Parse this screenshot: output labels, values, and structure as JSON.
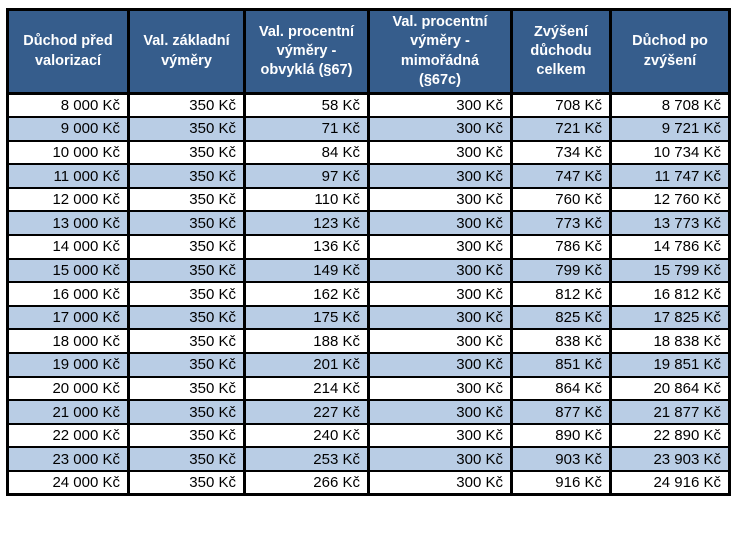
{
  "colors": {
    "header_bg": "#365D8C",
    "header_text": "#FFFFFF",
    "row_alt_bg": "#B9CDE5",
    "row_bg": "#FFFFFF",
    "border": "#000000",
    "data_text": "#000000"
  },
  "chart_data": {
    "type": "table",
    "currency_unit": "Kč",
    "columns": [
      "Důchod před\nvalorizací",
      "Val. základní\nvýměry",
      "Val. procentní\nvýměry -\nobvyklá (§67)",
      "Val. procentní\nvýměry -\nmimořádná\n(§67c)",
      "Zvýšení\ndůchodu\ncelkem",
      "Důchod po\nzvýšení"
    ],
    "rows": [
      [
        "8 000 Kč",
        "350 Kč",
        "58 Kč",
        "300 Kč",
        "708 Kč",
        "8 708 Kč"
      ],
      [
        "9 000 Kč",
        "350 Kč",
        "71 Kč",
        "300 Kč",
        "721 Kč",
        "9 721 Kč"
      ],
      [
        "10 000 Kč",
        "350 Kč",
        "84 Kč",
        "300 Kč",
        "734 Kč",
        "10 734 Kč"
      ],
      [
        "11 000 Kč",
        "350 Kč",
        "97 Kč",
        "300 Kč",
        "747 Kč",
        "11 747 Kč"
      ],
      [
        "12 000 Kč",
        "350 Kč",
        "110 Kč",
        "300 Kč",
        "760 Kč",
        "12 760 Kč"
      ],
      [
        "13 000 Kč",
        "350 Kč",
        "123 Kč",
        "300 Kč",
        "773 Kč",
        "13 773 Kč"
      ],
      [
        "14 000 Kč",
        "350 Kč",
        "136 Kč",
        "300 Kč",
        "786 Kč",
        "14 786 Kč"
      ],
      [
        "15 000 Kč",
        "350 Kč",
        "149 Kč",
        "300 Kč",
        "799 Kč",
        "15 799 Kč"
      ],
      [
        "16 000 Kč",
        "350 Kč",
        "162 Kč",
        "300 Kč",
        "812 Kč",
        "16 812 Kč"
      ],
      [
        "17 000 Kč",
        "350 Kč",
        "175 Kč",
        "300 Kč",
        "825 Kč",
        "17 825 Kč"
      ],
      [
        "18 000 Kč",
        "350 Kč",
        "188 Kč",
        "300 Kč",
        "838 Kč",
        "18 838 Kč"
      ],
      [
        "19 000 Kč",
        "350 Kč",
        "201 Kč",
        "300 Kč",
        "851 Kč",
        "19 851 Kč"
      ],
      [
        "20 000 Kč",
        "350 Kč",
        "214 Kč",
        "300 Kč",
        "864 Kč",
        "20 864 Kč"
      ],
      [
        "21 000 Kč",
        "350 Kč",
        "227 Kč",
        "300 Kč",
        "877 Kč",
        "21 877 Kč"
      ],
      [
        "22 000 Kč",
        "350 Kč",
        "240 Kč",
        "300 Kč",
        "890 Kč",
        "22 890 Kč"
      ],
      [
        "23 000 Kč",
        "350 Kč",
        "253 Kč",
        "300 Kč",
        "903 Kč",
        "23 903 Kč"
      ],
      [
        "24 000 Kč",
        "350 Kč",
        "266 Kč",
        "300 Kč",
        "916 Kč",
        "24 916 Kč"
      ]
    ]
  }
}
